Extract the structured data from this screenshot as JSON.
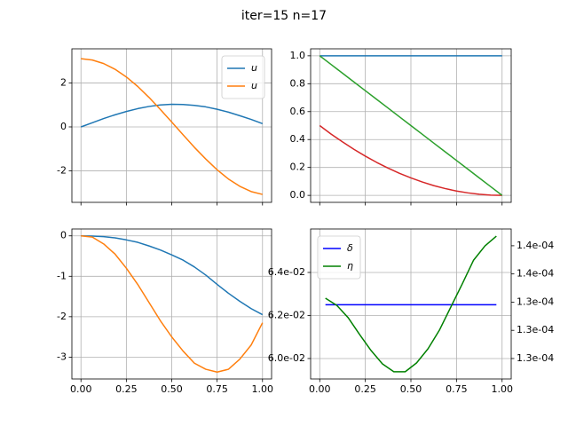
{
  "title": "iter=15 n=17",
  "chart_data": [
    {
      "type": "line",
      "grid": true,
      "legend": "upper right",
      "show_xticklabels": false,
      "x": [
        0,
        0.0625,
        0.125,
        0.1875,
        0.25,
        0.3125,
        0.375,
        0.4375,
        0.5,
        0.5625,
        0.625,
        0.6875,
        0.75,
        0.8125,
        0.875,
        0.9375,
        1
      ],
      "series": [
        {
          "name": "u",
          "color": "#1f77b4",
          "values": [
            0,
            0.19,
            0.38,
            0.55,
            0.7,
            0.83,
            0.93,
            1.0,
            1.03,
            1.02,
            0.98,
            0.91,
            0.8,
            0.67,
            0.51,
            0.34,
            0.15
          ]
        },
        {
          "name": "u",
          "color": "#ff7f0e",
          "values": [
            3.1,
            3.04,
            2.88,
            2.62,
            2.27,
            1.84,
            1.34,
            0.79,
            0.22,
            -0.36,
            -0.93,
            -1.46,
            -1.95,
            -2.37,
            -2.7,
            -2.94,
            -3.07
          ]
        }
      ],
      "xlim": [
        -0.05,
        1.05
      ],
      "ylim": [
        -3.43,
        3.55
      ],
      "xticks": [
        0,
        0.25,
        0.5,
        0.75,
        1
      ],
      "yticks": [
        -2,
        0,
        2
      ]
    },
    {
      "type": "line",
      "grid": true,
      "show_xticklabels": false,
      "x": [
        0,
        0.0625,
        0.125,
        0.1875,
        0.25,
        0.3125,
        0.375,
        0.4375,
        0.5,
        0.5625,
        0.625,
        0.6875,
        0.75,
        0.8125,
        0.875,
        0.9375,
        1
      ],
      "series": [
        {
          "color": "#1f77b4",
          "values": [
            1,
            1,
            1,
            1,
            1,
            1,
            1,
            1,
            1,
            1,
            1,
            1,
            1,
            1,
            1,
            1,
            1
          ]
        },
        {
          "color": "#d62728",
          "values": [
            0.5,
            0.439,
            0.383,
            0.33,
            0.281,
            0.236,
            0.195,
            0.158,
            0.125,
            0.096,
            0.07,
            0.049,
            0.031,
            0.018,
            0.008,
            0.002,
            0
          ]
        },
        {
          "color": "#2ca02c",
          "values": [
            1,
            0.9375,
            0.875,
            0.8125,
            0.75,
            0.6875,
            0.625,
            0.5625,
            0.5,
            0.4375,
            0.375,
            0.3125,
            0.25,
            0.1875,
            0.125,
            0.0625,
            0
          ]
        }
      ],
      "xlim": [
        -0.05,
        1.05
      ],
      "ylim": [
        -0.05,
        1.05
      ],
      "xticks": [
        0,
        0.25,
        0.5,
        0.75,
        1
      ],
      "yticks": [
        {
          "value": 0,
          "label": "0.0"
        },
        {
          "value": 0.2,
          "label": "0.2"
        },
        {
          "value": 0.4,
          "label": "0.4"
        },
        {
          "value": 0.6,
          "label": "0.6"
        },
        {
          "value": 0.8,
          "label": "0.8"
        },
        {
          "value": 1,
          "label": "1.0"
        }
      ]
    },
    {
      "type": "line",
      "grid": true,
      "x": [
        0,
        0.0625,
        0.125,
        0.1875,
        0.25,
        0.3125,
        0.375,
        0.4375,
        0.5,
        0.5625,
        0.625,
        0.6875,
        0.75,
        0.8125,
        0.875,
        0.9375,
        1
      ],
      "series": [
        {
          "color": "#1f77b4",
          "values": [
            0,
            -0.005,
            -0.02,
            -0.05,
            -0.1,
            -0.16,
            -0.25,
            -0.35,
            -0.47,
            -0.6,
            -0.77,
            -0.97,
            -1.2,
            -1.42,
            -1.62,
            -1.8,
            -1.95
          ]
        },
        {
          "color": "#ff7f0e",
          "values": [
            0,
            -0.03,
            -0.2,
            -0.45,
            -0.8,
            -1.2,
            -1.65,
            -2.1,
            -2.5,
            -2.85,
            -3.15,
            -3.3,
            -3.37,
            -3.3,
            -3.05,
            -2.7,
            -2.15
          ]
        }
      ],
      "xlim": [
        -0.05,
        1.05
      ],
      "ylim": [
        -3.54,
        0.17
      ],
      "xticks": [
        {
          "value": 0,
          "label": "0.00"
        },
        {
          "value": 0.25,
          "label": "0.25"
        },
        {
          "value": 0.5,
          "label": "0.50"
        },
        {
          "value": 0.75,
          "label": "0.75"
        },
        {
          "value": 1,
          "label": "1.00"
        }
      ],
      "yticks": [
        -3,
        -2,
        -1,
        0
      ]
    },
    {
      "type": "line",
      "grid": true,
      "legend": "upper left",
      "ytick_color": "blue",
      "y2tick_color": "green",
      "x": [
        0.03125,
        0.09375,
        0.15625,
        0.21875,
        0.28125,
        0.34375,
        0.40625,
        0.46875,
        0.53125,
        0.59375,
        0.65625,
        0.71875,
        0.78125,
        0.84375,
        0.90625,
        0.96875
      ],
      "series": [
        {
          "name": "δ",
          "color": "blue",
          "values": [
            0.0625,
            0.0625,
            0.0625,
            0.0625,
            0.0625,
            0.0625,
            0.0625,
            0.0625,
            0.0625,
            0.0625,
            0.0625,
            0.0625,
            0.0625,
            0.0625,
            0.0625,
            0.0625
          ]
        },
        {
          "name": "η",
          "color": "green",
          "axis": "y2",
          "values": [
            0.00013428,
            0.00013377,
            0.00013289,
            0.0001317,
            0.00013057,
            0.00012962,
            0.00012906,
            0.00012906,
            0.00012969,
            0.00013069,
            0.00013201,
            0.00013365,
            0.00013528,
            0.00013698,
            0.00013799,
            0.00013868
          ]
        }
      ],
      "xlim": [
        -0.05,
        1.05
      ],
      "ylim": [
        0.05905,
        0.06602
      ],
      "y2lim": [
        0.00012855,
        0.00013919
      ],
      "xticks": [
        {
          "value": 0,
          "label": "0.00"
        },
        {
          "value": 0.25,
          "label": "0.25"
        },
        {
          "value": 0.5,
          "label": "0.50"
        },
        {
          "value": 0.75,
          "label": "0.75"
        },
        {
          "value": 1,
          "label": "1.00"
        }
      ],
      "yticks": [
        {
          "value": 0.06,
          "label": "6.0e-02"
        },
        {
          "value": 0.062,
          "label": "6.2e-02"
        },
        {
          "value": 0.064,
          "label": "6.4e-02"
        }
      ],
      "y2ticks": [
        {
          "value": 0.00013,
          "label": "1.3e-04"
        },
        {
          "value": 0.000132,
          "label": "1.3e-04"
        },
        {
          "value": 0.000134,
          "label": "1.3e-04"
        },
        {
          "value": 0.000136,
          "label": "1.4e-04"
        },
        {
          "value": 0.000138,
          "label": "1.4e-04"
        }
      ]
    }
  ]
}
